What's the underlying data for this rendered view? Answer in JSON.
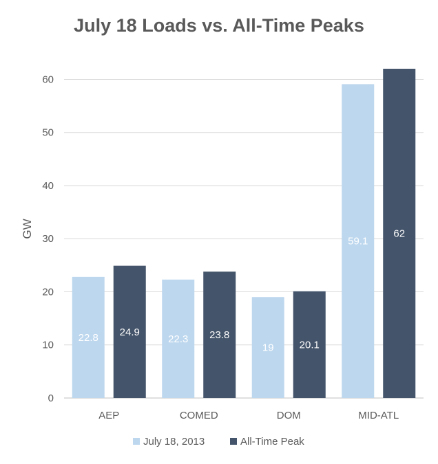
{
  "chart_data": {
    "type": "bar",
    "title": "July 18 Loads vs. All-Time Peaks",
    "xlabel": "",
    "ylabel": "GW",
    "ylim": [
      0,
      62
    ],
    "yticks": [
      0,
      10,
      20,
      30,
      40,
      50,
      60
    ],
    "grid": true,
    "legend_position": "bottom",
    "categories": [
      "AEP",
      "COMED",
      "DOM",
      "MID-ATL"
    ],
    "series": [
      {
        "name": "July 18, 2013",
        "color": "#bdd7ee",
        "values": [
          22.8,
          22.3,
          19,
          59.1
        ]
      },
      {
        "name": "All-Time Peak",
        "color": "#44546a",
        "values": [
          24.9,
          23.8,
          20.1,
          62
        ]
      }
    ]
  }
}
